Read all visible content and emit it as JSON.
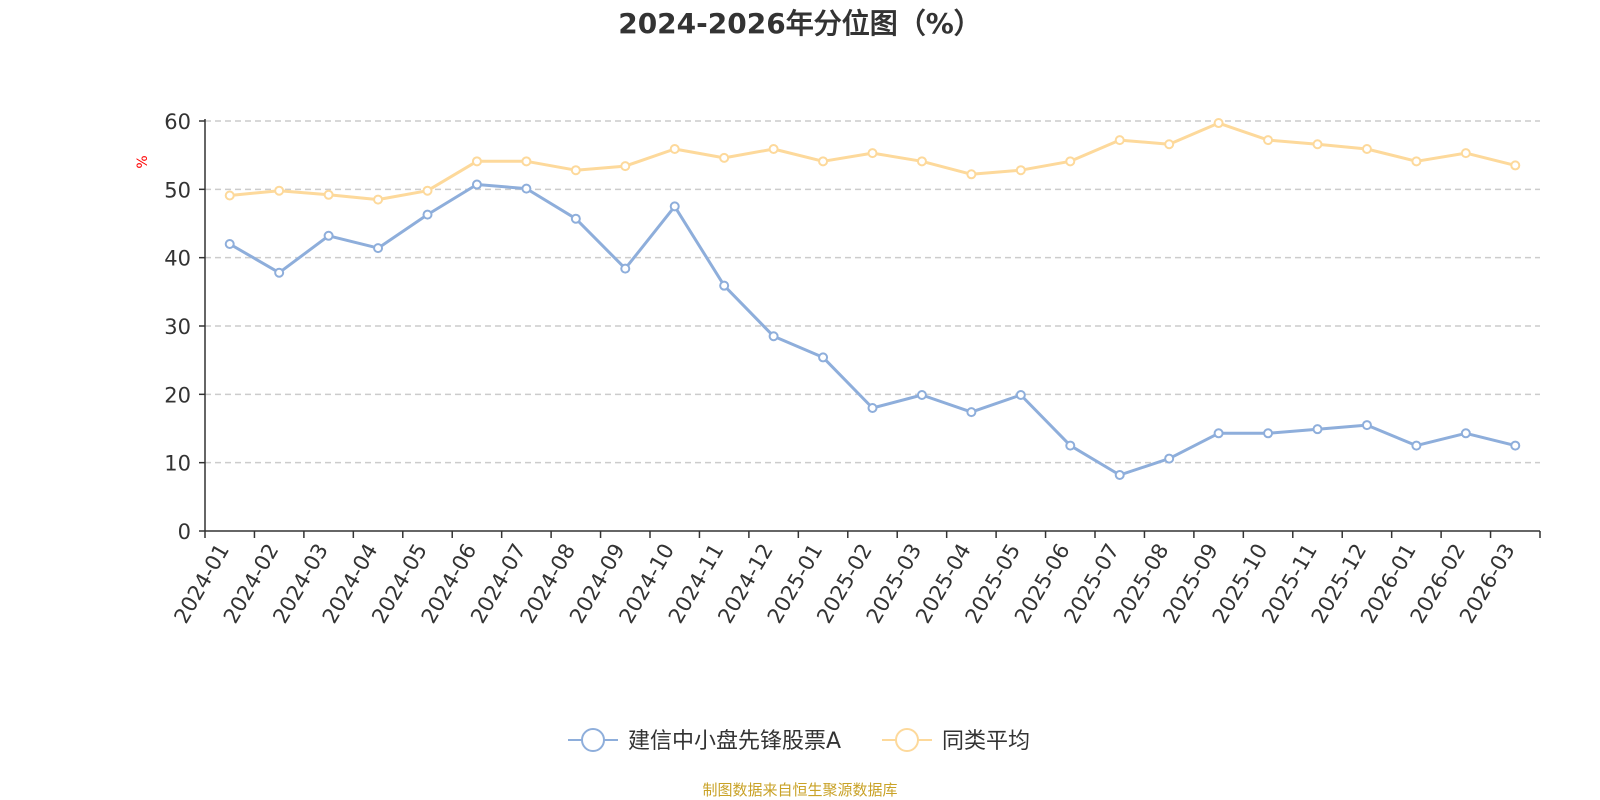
{
  "chart_data": {
    "type": "line",
    "title": "2024-2026年分位图（%）",
    "ylabel": "%",
    "xlabel": "",
    "ylim": [
      0,
      60
    ],
    "yticks": [
      0,
      10,
      20,
      30,
      40,
      50,
      60
    ],
    "grid": "horizontal dashed",
    "legend_position": "bottom-center",
    "categories": [
      "2024-01",
      "2024-02",
      "2024-03",
      "2024-04",
      "2024-05",
      "2024-06",
      "2024-07",
      "2024-08",
      "2024-09",
      "2024-10",
      "2024-11",
      "2024-12",
      "2025-01",
      "2025-02",
      "2025-03",
      "2025-04",
      "2025-05",
      "2025-06",
      "2025-07",
      "2025-08",
      "2025-09",
      "2025-10",
      "2025-11",
      "2025-12",
      "2026-01",
      "2026-02",
      "2026-03"
    ],
    "series": [
      {
        "name": "建信中小盘先锋股票A",
        "color": "#8eaedb",
        "values": [
          42.0,
          37.8,
          43.2,
          41.4,
          46.3,
          50.7,
          50.1,
          45.7,
          38.4,
          47.5,
          35.9,
          28.5,
          25.4,
          18.0,
          19.9,
          17.4,
          19.9,
          12.5,
          8.2,
          10.6,
          14.3,
          14.3,
          14.9,
          15.5,
          12.5,
          14.3,
          12.5
        ]
      },
      {
        "name": "同类平均",
        "color": "#fdd99b",
        "values": [
          49.1,
          49.8,
          49.2,
          48.5,
          49.8,
          54.1,
          54.1,
          52.8,
          53.4,
          55.9,
          54.6,
          55.9,
          54.1,
          55.3,
          54.1,
          52.2,
          52.8,
          54.1,
          57.2,
          56.6,
          59.7,
          57.2,
          56.6,
          55.9,
          54.1,
          55.3,
          53.5
        ]
      }
    ]
  },
  "source_note": "制图数据来自恒生聚源数据库"
}
